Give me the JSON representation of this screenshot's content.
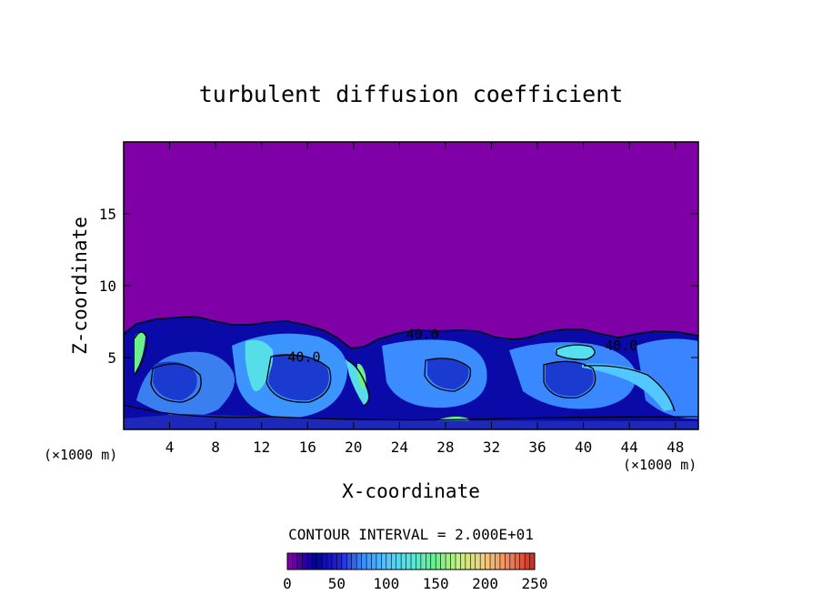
{
  "chart_data": {
    "type": "heatmap",
    "title": "turbulent diffusion coefficient",
    "xlabel": "X-coordinate",
    "ylabel": "Z-coordinate",
    "x_unit_left": "(×1000 m)",
    "x_unit_right": "(×1000 m)",
    "x_ticks": [
      4,
      8,
      12,
      16,
      20,
      24,
      28,
      32,
      36,
      40,
      44,
      48
    ],
    "y_ticks": [
      5,
      10,
      15
    ],
    "xlim": [
      0,
      50
    ],
    "ylim": [
      0,
      20
    ],
    "contour_interval_label": "CONTOUR INTERVAL = 2.000E+01",
    "contour_labels": [
      {
        "text": "40.0",
        "x": 15.7,
        "z": 4.7
      },
      {
        "text": "40.0",
        "x": 26.0,
        "z": 6.3
      },
      {
        "text": "40.0",
        "x": 43.3,
        "z": 5.5
      }
    ],
    "colorbar": {
      "min": 0,
      "max": 250,
      "ticks": [
        0,
        50,
        100,
        150,
        200,
        250
      ],
      "colors": [
        "#7f00a6",
        "#00009e",
        "#2020d0",
        "#3a8cff",
        "#52c8ff",
        "#55e8e0",
        "#6cf08a",
        "#c8f080",
        "#f0d080",
        "#f08a60",
        "#d03020"
      ]
    },
    "background_color": "#7f00a6"
  }
}
